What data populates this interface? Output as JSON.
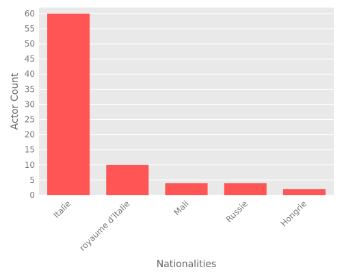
{
  "chart_data": {
    "type": "bar",
    "categories": [
      "Italie",
      "royaume d'Italie",
      "Mali",
      "Russie",
      "Hongrie"
    ],
    "values": [
      60,
      10,
      4,
      4,
      2
    ],
    "xlabel": "Nationalities",
    "ylabel": "Actor Count",
    "ylim": [
      0,
      62
    ],
    "yticks": [
      0,
      5,
      10,
      15,
      20,
      25,
      30,
      35,
      40,
      45,
      50,
      55,
      60
    ],
    "grid": true,
    "bar_color": "#ff5555",
    "background_color": "#e9e9e9",
    "grid_color": "#ffffff"
  }
}
